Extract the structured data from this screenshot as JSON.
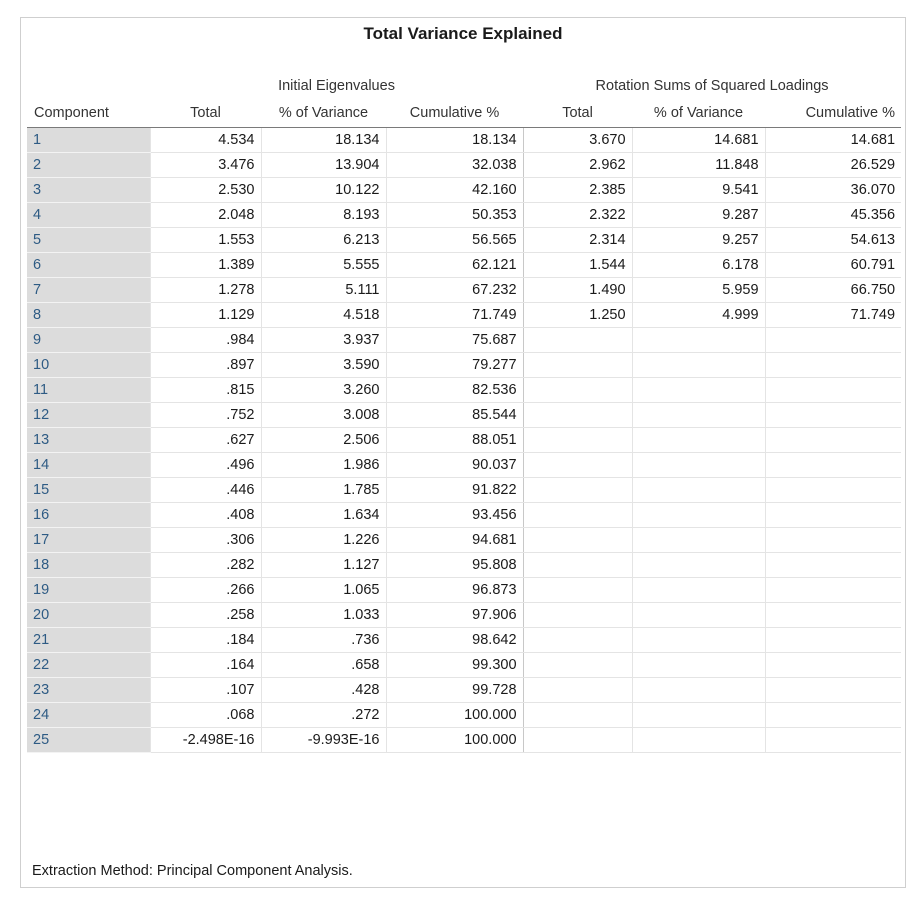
{
  "title": "Total Variance Explained",
  "groups": {
    "initial": "Initial Eigenvalues",
    "rotation": "Rotation Sums of Squared Loadings"
  },
  "columns": [
    "Component",
    "Total",
    "% of Variance",
    "Cumulative %",
    "Total",
    "% of Variance",
    "Cumulative %"
  ],
  "rows": [
    [
      "1",
      "4.534",
      "18.134",
      "18.134",
      "3.670",
      "14.681",
      "14.681"
    ],
    [
      "2",
      "3.476",
      "13.904",
      "32.038",
      "2.962",
      "11.848",
      "26.529"
    ],
    [
      "3",
      "2.530",
      "10.122",
      "42.160",
      "2.385",
      "9.541",
      "36.070"
    ],
    [
      "4",
      "2.048",
      "8.193",
      "50.353",
      "2.322",
      "9.287",
      "45.356"
    ],
    [
      "5",
      "1.553",
      "6.213",
      "56.565",
      "2.314",
      "9.257",
      "54.613"
    ],
    [
      "6",
      "1.389",
      "5.555",
      "62.121",
      "1.544",
      "6.178",
      "60.791"
    ],
    [
      "7",
      "1.278",
      "5.111",
      "67.232",
      "1.490",
      "5.959",
      "66.750"
    ],
    [
      "8",
      "1.129",
      "4.518",
      "71.749",
      "1.250",
      "4.999",
      "71.749"
    ],
    [
      "9",
      ".984",
      "3.937",
      "75.687",
      "",
      "",
      ""
    ],
    [
      "10",
      ".897",
      "3.590",
      "79.277",
      "",
      "",
      ""
    ],
    [
      "11",
      ".815",
      "3.260",
      "82.536",
      "",
      "",
      ""
    ],
    [
      "12",
      ".752",
      "3.008",
      "85.544",
      "",
      "",
      ""
    ],
    [
      "13",
      ".627",
      "2.506",
      "88.051",
      "",
      "",
      ""
    ],
    [
      "14",
      ".496",
      "1.986",
      "90.037",
      "",
      "",
      ""
    ],
    [
      "15",
      ".446",
      "1.785",
      "91.822",
      "",
      "",
      ""
    ],
    [
      "16",
      ".408",
      "1.634",
      "93.456",
      "",
      "",
      ""
    ],
    [
      "17",
      ".306",
      "1.226",
      "94.681",
      "",
      "",
      ""
    ],
    [
      "18",
      ".282",
      "1.127",
      "95.808",
      "",
      "",
      ""
    ],
    [
      "19",
      ".266",
      "1.065",
      "96.873",
      "",
      "",
      ""
    ],
    [
      "20",
      ".258",
      "1.033",
      "97.906",
      "",
      "",
      ""
    ],
    [
      "21",
      ".184",
      ".736",
      "98.642",
      "",
      "",
      ""
    ],
    [
      "22",
      ".164",
      ".658",
      "99.300",
      "",
      "",
      ""
    ],
    [
      "23",
      ".107",
      ".428",
      "99.728",
      "",
      "",
      ""
    ],
    [
      "24",
      ".068",
      ".272",
      "100.000",
      "",
      "",
      ""
    ],
    [
      "25",
      "-2.498E-16",
      "-9.993E-16",
      "100.000",
      "",
      "",
      ""
    ]
  ],
  "footer": "Extraction Method: Principal Component Analysis."
}
